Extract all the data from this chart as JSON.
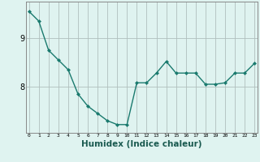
{
  "x": [
    0,
    1,
    2,
    3,
    4,
    5,
    6,
    7,
    8,
    9,
    10,
    11,
    12,
    13,
    14,
    15,
    16,
    17,
    18,
    19,
    20,
    21,
    22,
    23
  ],
  "y": [
    9.55,
    9.35,
    8.75,
    8.55,
    8.35,
    7.85,
    7.6,
    7.45,
    7.3,
    7.22,
    7.22,
    8.08,
    8.08,
    8.28,
    8.52,
    8.28,
    8.28,
    8.28,
    8.05,
    8.05,
    8.08,
    8.28,
    8.28,
    8.48
  ],
  "line_color": "#1a7a6e",
  "marker_color": "#1a7a6e",
  "bg_color": "#dff3f0",
  "grid_color": "#b0bfbd",
  "xlabel": "Humidex (Indice chaleur)",
  "xlabel_fontsize": 7.5,
  "ytick_labels": [
    "8",
    "9"
  ],
  "ytick_positions": [
    8,
    9
  ],
  "xtick_labels": [
    "0",
    "1",
    "2",
    "3",
    "4",
    "5",
    "6",
    "7",
    "8",
    "9",
    "10",
    "11",
    "12",
    "13",
    "14",
    "15",
    "16",
    "17",
    "18",
    "19",
    "20",
    "21",
    "22",
    "23"
  ],
  "ylim": [
    7.05,
    9.75
  ],
  "xlim": [
    -0.3,
    23.3
  ]
}
